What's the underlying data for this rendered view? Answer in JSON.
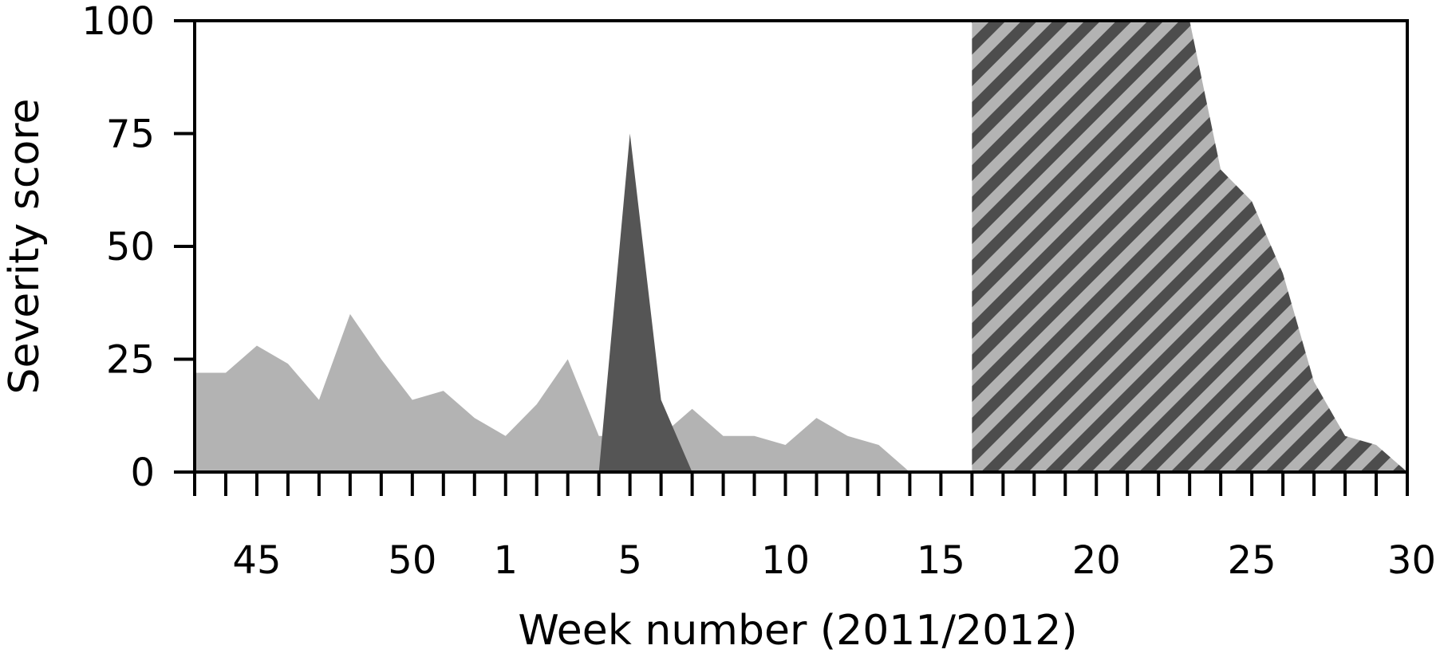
{
  "chart_data": {
    "type": "area",
    "xlabel": "Week number (2011/2012)",
    "ylabel": "Severity score",
    "ylim": [
      0,
      100
    ],
    "yticks": [
      0,
      25,
      50,
      75,
      100
    ],
    "week_sequence": [
      43,
      44,
      45,
      46,
      47,
      48,
      49,
      50,
      51,
      52,
      1,
      2,
      3,
      4,
      5,
      6,
      7,
      8,
      9,
      10,
      11,
      12,
      13,
      14,
      15,
      16,
      17,
      18,
      19,
      20,
      21,
      22,
      23,
      24,
      25,
      26,
      27,
      28,
      29,
      30
    ],
    "xtick_labels": [
      "45",
      "50",
      "1",
      "5",
      "10",
      "15",
      "20",
      "25",
      "30"
    ],
    "grid": false,
    "legend": "none",
    "series": [
      {
        "style": "light-grey fill",
        "color": "#b3b3b3",
        "points": [
          [
            43,
            22
          ],
          [
            44,
            22
          ],
          [
            45,
            28
          ],
          [
            46,
            24
          ],
          [
            47,
            16
          ],
          [
            48,
            35
          ],
          [
            49,
            25
          ],
          [
            50,
            16
          ],
          [
            51,
            18
          ],
          [
            52,
            12
          ],
          [
            1,
            8
          ],
          [
            2,
            15
          ],
          [
            3,
            25
          ],
          [
            4,
            8
          ],
          [
            5,
            8
          ],
          [
            6,
            8
          ],
          [
            7,
            14
          ],
          [
            8,
            8
          ],
          [
            9,
            8
          ],
          [
            10,
            6
          ],
          [
            11,
            12
          ],
          [
            12,
            8
          ],
          [
            13,
            6
          ],
          [
            14,
            0
          ]
        ]
      },
      {
        "style": "dark-grey fill",
        "color": "#555555",
        "points": [
          [
            4,
            0
          ],
          [
            5,
            75
          ],
          [
            6,
            16
          ],
          [
            7,
            0
          ]
        ]
      },
      {
        "style": "diagonal hatch (dark/light grey)",
        "color": "#4d4d4d",
        "hatch_color": "#b3b3b3",
        "points": [
          [
            16,
            0
          ],
          [
            16,
            100
          ],
          [
            17,
            100
          ],
          [
            18,
            100
          ],
          [
            19,
            100
          ],
          [
            20,
            100
          ],
          [
            21,
            100
          ],
          [
            22,
            100
          ],
          [
            23,
            100
          ],
          [
            24,
            67
          ],
          [
            25,
            60
          ],
          [
            26,
            44
          ],
          [
            27,
            20
          ],
          [
            28,
            8
          ],
          [
            29,
            6
          ],
          [
            30,
            0
          ]
        ]
      }
    ]
  }
}
